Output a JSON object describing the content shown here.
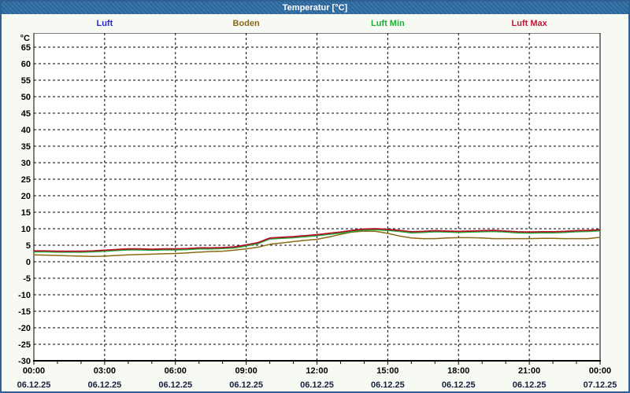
{
  "window": {
    "title": "Temperatur [°C]"
  },
  "legend": {
    "items": [
      {
        "label": "Luft",
        "color": "#2a2ace"
      },
      {
        "label": "Boden",
        "color": "#8a6a1a"
      },
      {
        "label": "Luft Min",
        "color": "#1fae38"
      },
      {
        "label": "Luft Max",
        "color": "#c01838"
      }
    ]
  },
  "chart_data": {
    "type": "line",
    "title": "Temperatur [°C]",
    "unit_label": "°C",
    "x_start_hour": 0,
    "x_step_hours": 0.5,
    "x_axis": {
      "hours_span": 24,
      "major_tick_every_hours": 3,
      "minor_tick_every_hours": 1,
      "major_ticks": [
        "00:00",
        "03:00",
        "06:00",
        "09:00",
        "12:00",
        "15:00",
        "18:00",
        "21:00",
        "00:00"
      ],
      "dates": [
        "06.12.25",
        "06.12.25",
        "06.12.25",
        "06.12.25",
        "06.12.25",
        "06.12.25",
        "06.12.25",
        "06.12.25",
        "07.12.25"
      ]
    },
    "y_axis": {
      "min": -30,
      "max": 69.3,
      "tick_min": -30,
      "tick_max": 65,
      "tick_step": 5
    },
    "grid": true,
    "legend_position": "top",
    "series": [
      {
        "name": "Luft",
        "color": "#2424c8",
        "width": 1.7,
        "values": [
          3.1,
          3.1,
          3.0,
          3.0,
          3.0,
          3.1,
          3.3,
          3.5,
          3.7,
          3.7,
          3.6,
          3.7,
          3.7,
          3.8,
          4.0,
          4.0,
          4.1,
          4.3,
          4.9,
          5.6,
          7.0,
          7.2,
          7.4,
          7.7,
          8.0,
          8.4,
          8.8,
          9.3,
          9.7,
          9.8,
          9.6,
          9.3,
          8.9,
          9.0,
          9.2,
          9.1,
          9.0,
          9.1,
          9.2,
          9.3,
          9.1,
          8.9,
          8.8,
          8.9,
          8.9,
          9.0,
          9.2,
          9.3,
          9.5
        ]
      },
      {
        "name": "Boden",
        "color": "#8a6a10",
        "width": 1.5,
        "values": [
          2.1,
          2.0,
          1.9,
          1.8,
          1.7,
          1.6,
          1.7,
          1.9,
          2.1,
          2.2,
          2.3,
          2.4,
          2.5,
          2.7,
          2.9,
          3.1,
          3.2,
          3.5,
          3.9,
          4.4,
          5.3,
          5.7,
          6.1,
          6.5,
          6.8,
          7.5,
          8.3,
          9.0,
          9.3,
          9.2,
          8.6,
          7.8,
          7.2,
          7.0,
          7.0,
          7.2,
          7.3,
          7.3,
          7.2,
          7.0,
          7.0,
          7.0,
          7.0,
          7.1,
          7.1,
          7.0,
          7.0,
          7.0,
          7.4
        ]
      },
      {
        "name": "Luft Min",
        "color": "#1fae38",
        "width": 1.7,
        "values": [
          3.0,
          3.0,
          2.9,
          2.9,
          2.9,
          3.0,
          3.2,
          3.4,
          3.6,
          3.6,
          3.5,
          3.6,
          3.6,
          3.7,
          3.9,
          3.9,
          4.0,
          4.2,
          4.8,
          5.5,
          6.9,
          7.1,
          7.3,
          7.6,
          7.9,
          8.3,
          8.7,
          9.2,
          9.6,
          9.7,
          9.5,
          9.2,
          8.8,
          8.9,
          9.1,
          9.0,
          8.9,
          9.0,
          9.1,
          9.2,
          9.0,
          8.8,
          8.7,
          8.8,
          8.8,
          8.9,
          9.1,
          9.2,
          9.4
        ]
      },
      {
        "name": "Luft Max",
        "color": "#b50d25",
        "width": 1.7,
        "values": [
          3.3,
          3.3,
          3.2,
          3.2,
          3.2,
          3.3,
          3.5,
          3.7,
          3.9,
          3.9,
          3.8,
          3.9,
          3.9,
          4.0,
          4.2,
          4.2,
          4.3,
          4.5,
          5.1,
          5.8,
          7.2,
          7.4,
          7.6,
          7.9,
          8.2,
          8.6,
          9.0,
          9.5,
          9.9,
          10.0,
          9.8,
          9.5,
          9.1,
          9.2,
          9.4,
          9.3,
          9.2,
          9.3,
          9.4,
          9.5,
          9.3,
          9.1,
          9.0,
          9.1,
          9.1,
          9.2,
          9.4,
          9.5,
          9.7
        ]
      }
    ]
  },
  "style": {
    "plot_bg": "#ffffff",
    "grid_color": "#000000",
    "axis_color": "#000000",
    "tick_label_color": "#000000",
    "date_label_color": "#16213e"
  }
}
